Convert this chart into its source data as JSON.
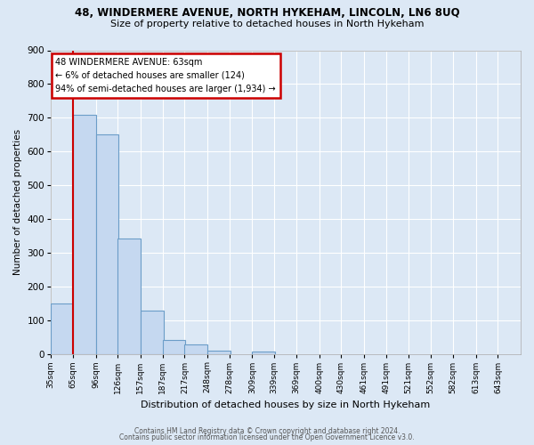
{
  "title": "48, WINDERMERE AVENUE, NORTH HYKEHAM, LINCOLN, LN6 8UQ",
  "subtitle": "Size of property relative to detached houses in North Hykeham",
  "xlabel": "Distribution of detached houses by size in North Hykeham",
  "ylabel": "Number of detached properties",
  "bin_labels": [
    "35sqm",
    "65sqm",
    "96sqm",
    "126sqm",
    "157sqm",
    "187sqm",
    "217sqm",
    "248sqm",
    "278sqm",
    "309sqm",
    "339sqm",
    "369sqm",
    "400sqm",
    "430sqm",
    "461sqm",
    "491sqm",
    "521sqm",
    "552sqm",
    "582sqm",
    "613sqm",
    "643sqm"
  ],
  "bar_heights": [
    150,
    710,
    650,
    343,
    130,
    42,
    30,
    12,
    0,
    8,
    0,
    0,
    0,
    0,
    0,
    0,
    0,
    0,
    0,
    0,
    0
  ],
  "bar_color": "#c5d8f0",
  "bar_edge_color": "#6b9dc8",
  "marker_label_line1": "48 WINDERMERE AVENUE: 63sqm",
  "marker_label_line2": "← 6% of detached houses are smaller (124)",
  "marker_label_line3": "94% of semi-detached houses are larger (1,934) →",
  "marker_color": "#cc0000",
  "ylim": [
    0,
    900
  ],
  "yticks": [
    0,
    100,
    200,
    300,
    400,
    500,
    600,
    700,
    800,
    900
  ],
  "footer_line1": "Contains HM Land Registry data © Crown copyright and database right 2024.",
  "footer_line2": "Contains public sector information licensed under the Open Government Licence v3.0.",
  "background_color": "#dce8f5",
  "grid_color": "#ffffff",
  "bin_starts": [
    35,
    65,
    96,
    126,
    157,
    187,
    217,
    248,
    278,
    309,
    339,
    369,
    400,
    430,
    461,
    491,
    521,
    552,
    582,
    613,
    643
  ],
  "bin_width": 31
}
